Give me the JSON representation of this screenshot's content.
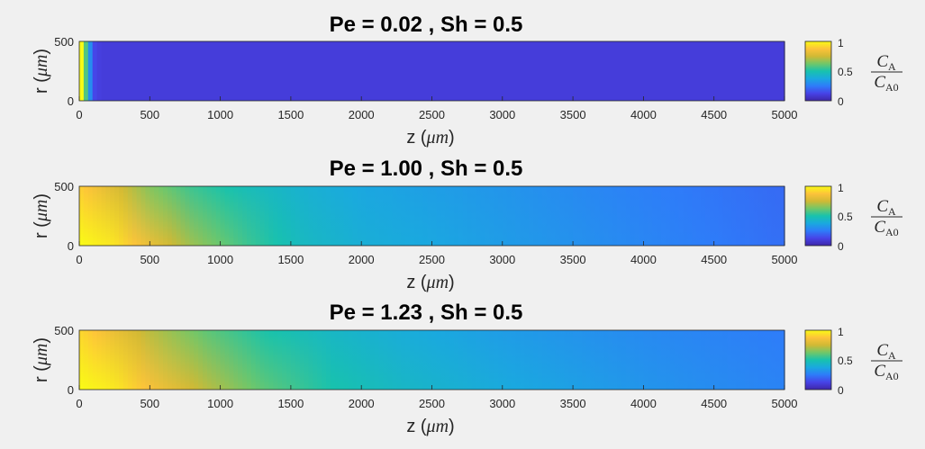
{
  "colors": {
    "background": "#f0f0f0",
    "axis": "#262626",
    "colormap": "parula"
  },
  "chart_data": [
    {
      "type": "heatmap",
      "title": "Pe = 0.02 ,  Sh = 0.5",
      "xlabel_prefix": "z (",
      "xlabel_unit": "μm",
      "xlabel_suffix": ")",
      "ylabel_prefix": "r (",
      "ylabel_unit": "μm",
      "ylabel_suffix": ")",
      "xlim": [
        0,
        5000
      ],
      "ylim": [
        0,
        500
      ],
      "xticks": [
        0,
        500,
        1000,
        1500,
        2000,
        2500,
        3000,
        3500,
        4000,
        4500,
        5000
      ],
      "yticks": [
        0,
        500
      ],
      "grid": false,
      "colorbar": {
        "range": [
          0,
          1
        ],
        "ticks": [
          0,
          0.5,
          1
        ],
        "label_numerator": "C",
        "label_numerator_sub": "A",
        "label_denominator": "C",
        "label_denominator_sub": "A0"
      },
      "profile": {
        "quantity": "C_A/C_A0",
        "z": [
          0,
          25,
          50,
          75,
          100,
          150,
          250,
          500,
          1000,
          5000
        ],
        "value_at_axis": [
          1.0,
          1.0,
          0.52,
          0.32,
          0.14,
          0.1,
          0.1,
          0.1,
          0.1,
          0.1
        ],
        "value_at_wall": [
          1.0,
          1.0,
          0.52,
          0.32,
          0.14,
          0.1,
          0.1,
          0.1,
          0.1,
          0.1
        ]
      }
    },
    {
      "type": "heatmap",
      "title": "Pe = 1.00 ,  Sh = 0.5",
      "xlabel_prefix": "z (",
      "xlabel_unit": "μm",
      "xlabel_suffix": ")",
      "ylabel_prefix": "r (",
      "ylabel_unit": "μm",
      "ylabel_suffix": ")",
      "xlim": [
        0,
        5000
      ],
      "ylim": [
        0,
        500
      ],
      "xticks": [
        0,
        500,
        1000,
        1500,
        2000,
        2500,
        3000,
        3500,
        4000,
        4500,
        5000
      ],
      "yticks": [
        0,
        500
      ],
      "grid": false,
      "colorbar": {
        "range": [
          0,
          1
        ],
        "ticks": [
          0,
          0.5,
          1
        ],
        "label_numerator": "C",
        "label_numerator_sub": "A",
        "label_denominator": "C",
        "label_denominator_sub": "A0"
      },
      "profile": {
        "quantity": "C_A/C_A0",
        "z": [
          0,
          250,
          500,
          800,
          1200,
          1600,
          2000,
          3000,
          4000,
          5000
        ],
        "value_at_axis": [
          1.0,
          0.95,
          0.82,
          0.68,
          0.55,
          0.45,
          0.4,
          0.34,
          0.28,
          0.22
        ],
        "value_at_wall": [
          0.9,
          0.78,
          0.65,
          0.55,
          0.47,
          0.41,
          0.37,
          0.32,
          0.26,
          0.21
        ]
      }
    },
    {
      "type": "heatmap",
      "title": "Pe = 1.23 ,  Sh = 0.5",
      "xlabel_prefix": "z (",
      "xlabel_unit": "μm",
      "xlabel_suffix": ")",
      "ylabel_prefix": "r (",
      "ylabel_unit": "μm",
      "ylabel_suffix": ")",
      "xlim": [
        0,
        5000
      ],
      "ylim": [
        0,
        500
      ],
      "xticks": [
        0,
        500,
        1000,
        1500,
        2000,
        2500,
        3000,
        3500,
        4000,
        4500,
        5000
      ],
      "yticks": [
        0,
        500
      ],
      "grid": false,
      "colorbar": {
        "range": [
          0,
          1
        ],
        "ticks": [
          0,
          0.5,
          1
        ],
        "label_numerator": "C",
        "label_numerator_sub": "A",
        "label_denominator": "C",
        "label_denominator_sub": "A0"
      },
      "profile": {
        "quantity": "C_A/C_A0",
        "z": [
          0,
          250,
          500,
          900,
          1300,
          1800,
          2300,
          3000,
          4000,
          5000
        ],
        "value_at_axis": [
          1.0,
          0.96,
          0.86,
          0.72,
          0.6,
          0.5,
          0.44,
          0.38,
          0.32,
          0.27
        ],
        "value_at_wall": [
          0.92,
          0.82,
          0.72,
          0.6,
          0.51,
          0.44,
          0.39,
          0.34,
          0.29,
          0.25
        ]
      }
    }
  ]
}
